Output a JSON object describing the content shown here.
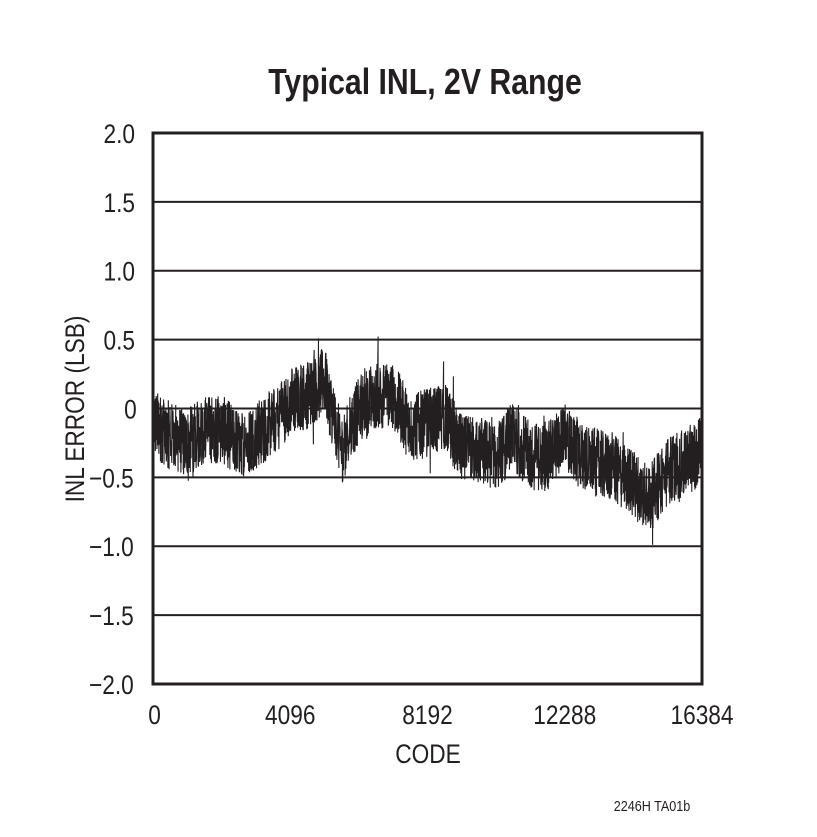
{
  "chart_data": {
    "type": "line",
    "title": "Typical INL, 2V Range",
    "xlabel": "CODE",
    "ylabel": "INL ERROR (LSB)",
    "xlim": [
      0,
      16384
    ],
    "ylim": [
      -2.0,
      2.0
    ],
    "x_ticks": [
      "0",
      "4096",
      "8192",
      "12288",
      "16384"
    ],
    "y_ticks": [
      "2.0",
      "1.5",
      "1.0",
      "0.5",
      "0",
      "−0.5",
      "−1.0",
      "−1.5",
      "−2.0"
    ],
    "grid": "horizontal",
    "line_color": "#231f20",
    "series": [
      {
        "x": [
          0,
          512,
          1024,
          1536,
          2048,
          2560,
          3072,
          3584,
          4096,
          4608,
          5120,
          5632,
          6144,
          6656,
          7168,
          7680,
          8192,
          8704,
          9216,
          9728,
          10240,
          10752,
          11264,
          11776,
          12288,
          12800,
          13312,
          13824,
          14336,
          14848,
          15360,
          15872,
          16384
        ],
        "values": [
          -0.1,
          -0.2,
          -0.25,
          -0.15,
          -0.15,
          -0.25,
          -0.2,
          -0.1,
          0.05,
          0.1,
          0.2,
          -0.3,
          0.0,
          0.1,
          0.1,
          -0.15,
          -0.1,
          -0.05,
          -0.3,
          -0.3,
          -0.35,
          -0.2,
          -0.35,
          -0.35,
          -0.2,
          -0.35,
          -0.4,
          -0.45,
          -0.55,
          -0.65,
          -0.45,
          -0.4,
          -0.3
        ]
      }
    ]
  },
  "footnote": "2246H TA01b"
}
